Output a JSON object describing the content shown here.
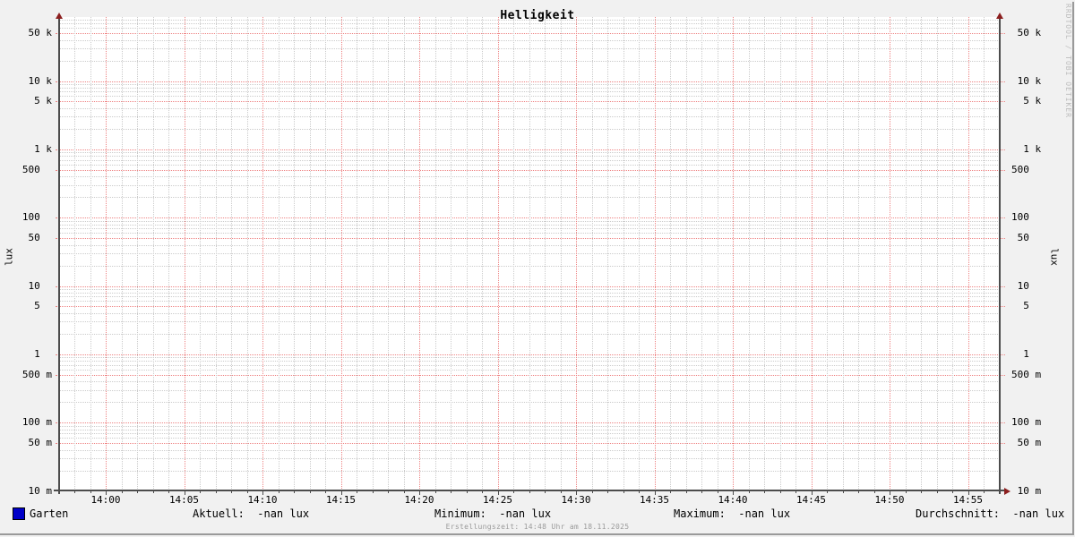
{
  "title": "Helligkeit",
  "watermark": "RRDTOOL / TOBI OETIKER",
  "footer": "Erstellungszeit: 14:48 Uhr am 18.11.2025",
  "y_axis_label_left": "lux",
  "y_axis_label_right": "lux",
  "legend": {
    "series_label": "Garten",
    "series_swatch_color": "#0000c8",
    "stats": [
      {
        "text": "Aktuell:  -nan lux",
        "x": 215
      },
      {
        "text": "Minimum:  -nan lux",
        "x": 485
      },
      {
        "text": "Maximum:  -nan lux",
        "x": 752
      },
      {
        "text": "Durchschnitt:  -nan lux",
        "x": 1022
      }
    ]
  },
  "chart_data": {
    "type": "line",
    "title": "Helligkeit",
    "ylabel": "lux",
    "y_scale": "log",
    "y_range": [
      0.01,
      80000
    ],
    "x_range": [
      "13:58",
      "14:57"
    ],
    "x_tick_interval_minutes": 5,
    "x_minor_interval_minutes": 1,
    "grid": true,
    "legend_position": "bottom",
    "x_ticks": [
      {
        "m": 0,
        "label": "14:00"
      },
      {
        "m": 5,
        "label": "14:05"
      },
      {
        "m": 10,
        "label": "14:10"
      },
      {
        "m": 15,
        "label": "14:15"
      },
      {
        "m": 20,
        "label": "14:20"
      },
      {
        "m": 25,
        "label": "14:25"
      },
      {
        "m": 30,
        "label": "14:30"
      },
      {
        "m": 35,
        "label": "14:35"
      },
      {
        "m": 40,
        "label": "14:40"
      },
      {
        "m": 45,
        "label": "14:45"
      },
      {
        "m": 50,
        "label": "14:50"
      },
      {
        "m": 55,
        "label": "14:55"
      }
    ],
    "y_ticks": [
      {
        "v": 50000,
        "left": "50 k",
        "right": " 50 k"
      },
      {
        "v": 10000,
        "left": "10 k",
        "right": " 10 k"
      },
      {
        "v": 5000,
        "left": "5 k",
        "right": "  5 k"
      },
      {
        "v": 1000,
        "left": "1 k",
        "right": "  1 k"
      },
      {
        "v": 500,
        "left": "500  ",
        "right": "500"
      },
      {
        "v": 100,
        "left": "100  ",
        "right": "100"
      },
      {
        "v": 50,
        "left": "50  ",
        "right": " 50"
      },
      {
        "v": 10,
        "left": "10  ",
        "right": " 10"
      },
      {
        "v": 5,
        "left": "5  ",
        "right": "  5"
      },
      {
        "v": 1,
        "left": "1  ",
        "right": "  1"
      },
      {
        "v": 0.5,
        "left": "500 m",
        "right": "500 m"
      },
      {
        "v": 0.1,
        "left": "100 m",
        "right": "100 m"
      },
      {
        "v": 0.05,
        "left": "50 m",
        "right": " 50 m"
      },
      {
        "v": 0.01,
        "left": "10 m",
        "right": " 10 m"
      }
    ],
    "series": [
      {
        "name": "Garten",
        "color": "#0000c8",
        "data": "no data plotted (all values -nan)"
      }
    ],
    "stats": {
      "aktuell": "-nan lux",
      "minimum": "-nan lux",
      "maximum": "-nan lux",
      "durchschnitt": "-nan lux"
    }
  },
  "colors": {
    "background": "#f1f1f1",
    "canvas": "#ffffff",
    "major_grid": "#ee8383",
    "minor_grid": "#cbcbcb",
    "axis": "#4c4c4c",
    "arrow": "#8b1e1e",
    "text": "#000000",
    "muted_text": "#9b9b9b",
    "watermark_text": "#bdbdbd",
    "shade": "#9a9a9a",
    "series": "#0000c8"
  }
}
